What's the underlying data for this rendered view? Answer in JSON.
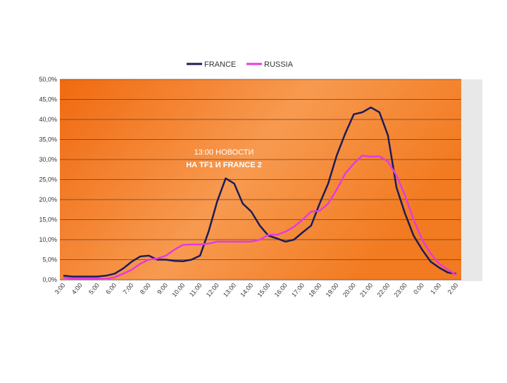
{
  "chart_data": {
    "type": "line",
    "categories": [
      "3:00",
      null,
      "4:00",
      null,
      "5:00",
      null,
      "6:00",
      null,
      "7:00",
      null,
      "8:00",
      null,
      "9:00",
      null,
      "10:00",
      null,
      "11:00",
      null,
      "12:00",
      null,
      "13:00",
      null,
      "14:00",
      null,
      "15:00",
      null,
      "16:00",
      null,
      "17:00",
      null,
      "18:00",
      null,
      "19:00",
      null,
      "20:00",
      null,
      "21:00",
      null,
      "22:00",
      null,
      "23:00",
      null,
      "0:00",
      null,
      "1:00",
      null,
      "2:00"
    ],
    "series": [
      {
        "name": "FRANCE",
        "color": "#1c1c5a",
        "values": [
          1.0,
          0.8,
          0.8,
          0.8,
          0.8,
          1.0,
          1.5,
          2.8,
          4.5,
          5.8,
          6.0,
          5.0,
          5.0,
          4.7,
          4.6,
          5.0,
          6.0,
          12,
          19.5,
          25.3,
          24,
          19,
          17,
          13.5,
          11,
          10.3,
          9.5,
          10,
          11.8,
          13.5,
          19,
          24,
          31,
          36.5,
          41.3,
          41.8,
          43,
          41.8,
          36,
          23,
          16.5,
          11,
          7.5,
          4.5,
          3,
          1.8,
          1.5
        ]
      },
      {
        "name": "RUSSIA",
        "color": "#e43be0",
        "values": [
          0.5,
          0.3,
          0.3,
          0.3,
          0.3,
          0.2,
          0.6,
          1.5,
          2.5,
          4,
          5,
          5.3,
          6,
          7.5,
          8.7,
          8.8,
          8.8,
          9,
          9.5,
          9.5,
          9.5,
          9.5,
          9.5,
          10,
          11.2,
          11.2,
          12,
          13.2,
          15,
          17,
          17.2,
          19,
          22.5,
          26.5,
          29,
          31,
          30.7,
          30.8,
          29.5,
          26,
          21,
          15,
          10,
          6.5,
          4,
          2.5,
          1.2
        ]
      }
    ],
    "annotation": [
      "13:00 НОВОСТИ",
      "НА TF1 И FRANCE 2"
    ],
    "ylim": [
      0,
      50
    ],
    "yticks": [
      {
        "value": 0,
        "label": "0,0%"
      },
      {
        "value": 5,
        "label": "5,0%"
      },
      {
        "value": 10,
        "label": "10,0%"
      },
      {
        "value": 15,
        "label": "15,0%"
      },
      {
        "value": 20,
        "label": "20,0%"
      },
      {
        "value": 25,
        "label": "25,0%"
      },
      {
        "value": 30,
        "label": "30,0%"
      },
      {
        "value": 35,
        "label": "35,0%"
      },
      {
        "value": 40,
        "label": "40,0%"
      },
      {
        "value": 45,
        "label": "45,0%"
      },
      {
        "value": 50,
        "label": "50,0%"
      }
    ],
    "grid": true,
    "legend": "top"
  }
}
